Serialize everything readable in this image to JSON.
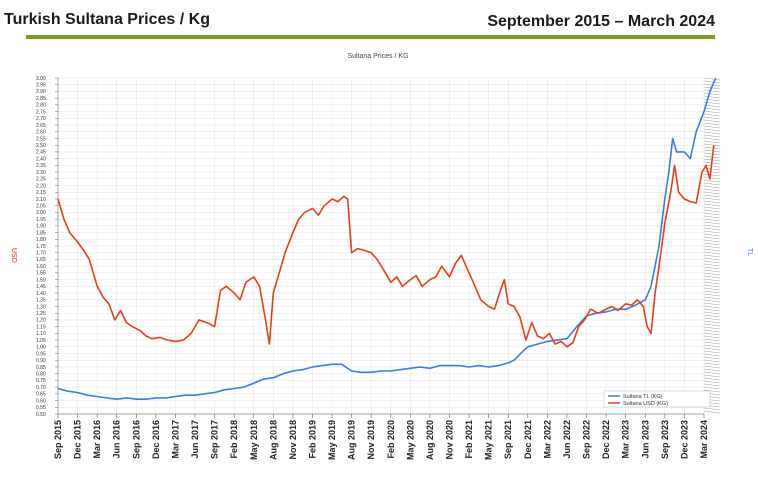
{
  "header": {
    "title": "Turkish Sultana Prices / Kg",
    "date_range": "September 2015 – March 2024"
  },
  "chart_data": {
    "type": "line",
    "title": "Sultana Prices / KG",
    "ylabel_left": "USD",
    "ylabel_right": "TL",
    "ylim": [
      0.5,
      3.0
    ],
    "yticks": [
      "3.00",
      "2.95",
      "2.90",
      "2.85",
      "2.80",
      "2.75",
      "2.70",
      "2.65",
      "2.60",
      "2.55",
      "2.50",
      "2.45",
      "2.40",
      "2.35",
      "2.30",
      "2.25",
      "2.20",
      "2.15",
      "2.10",
      "2.05",
      "2.00",
      "1.95",
      "1.90",
      "1.85",
      "1.80",
      "1.75",
      "1.70",
      "1.65",
      "1.60",
      "1.55",
      "1.50",
      "1.45",
      "1.40",
      "1.35",
      "1.30",
      "1.25",
      "1.20",
      "1.15",
      "1.10",
      "1.05",
      "1.00",
      "0.95",
      "0.90",
      "0.85",
      "0.80",
      "0.75",
      "0.70",
      "0.65",
      "0.60",
      "0.55",
      "0.50"
    ],
    "xticks": [
      "Sep 2015",
      "Dec 2015",
      "Mar 2016",
      "Jun 2016",
      "Sep 2016",
      "Dec 2016",
      "Mar 2017",
      "Jun 2017",
      "Sep 2017",
      "Feb 2018",
      "May 2018",
      "Aug 2018",
      "Nov 2018",
      "Feb 2019",
      "May 2019",
      "Aug 2019",
      "Nov 2019",
      "Feb 2020",
      "May 2020",
      "Aug 2020",
      "Nov 2020",
      "Feb 2021",
      "May 2021",
      "Sep 2021",
      "Dec 2021",
      "Mar 2022",
      "Jun 2022",
      "Sep 2022",
      "Dec 2022",
      "Mar 2023",
      "Jun 2023",
      "Sep 2023",
      "Dec 2023",
      "Mar 2024"
    ],
    "legend_position": "bottom-right",
    "series": [
      {
        "name": "Sultana TL (KG)",
        "color": "#3a7fd5",
        "points": [
          [
            0,
            0.69
          ],
          [
            0.5,
            0.67
          ],
          [
            1,
            0.66
          ],
          [
            1.5,
            0.64
          ],
          [
            2,
            0.63
          ],
          [
            2.5,
            0.62
          ],
          [
            3,
            0.61
          ],
          [
            3.5,
            0.62
          ],
          [
            4,
            0.61
          ],
          [
            4.5,
            0.61
          ],
          [
            5,
            0.62
          ],
          [
            5.5,
            0.62
          ],
          [
            6,
            0.63
          ],
          [
            6.5,
            0.64
          ],
          [
            7,
            0.64
          ],
          [
            7.5,
            0.65
          ],
          [
            8,
            0.66
          ],
          [
            8.5,
            0.68
          ],
          [
            9,
            0.69
          ],
          [
            9.5,
            0.7
          ],
          [
            10,
            0.73
          ],
          [
            10.5,
            0.76
          ],
          [
            11,
            0.77
          ],
          [
            11.5,
            0.8
          ],
          [
            12,
            0.82
          ],
          [
            12.5,
            0.83
          ],
          [
            13,
            0.85
          ],
          [
            13.5,
            0.86
          ],
          [
            14,
            0.87
          ],
          [
            14.5,
            0.87
          ],
          [
            15,
            0.82
          ],
          [
            15.5,
            0.81
          ],
          [
            16,
            0.81
          ],
          [
            16.5,
            0.82
          ],
          [
            17,
            0.82
          ],
          [
            17.5,
            0.83
          ],
          [
            18,
            0.84
          ],
          [
            18.5,
            0.85
          ],
          [
            19,
            0.84
          ],
          [
            19.5,
            0.86
          ],
          [
            20,
            0.86
          ],
          [
            20.5,
            0.86
          ],
          [
            21,
            0.85
          ],
          [
            21.5,
            0.86
          ],
          [
            22,
            0.85
          ],
          [
            22.5,
            0.86
          ],
          [
            23,
            0.88
          ],
          [
            23.3,
            0.9
          ],
          [
            23.7,
            0.96
          ],
          [
            24,
            1.0
          ],
          [
            24.5,
            1.02
          ],
          [
            25,
            1.04
          ],
          [
            25.5,
            1.05
          ],
          [
            26,
            1.06
          ],
          [
            26.5,
            1.15
          ],
          [
            27,
            1.23
          ],
          [
            27.5,
            1.25
          ],
          [
            28,
            1.26
          ],
          [
            28.5,
            1.28
          ],
          [
            29,
            1.28
          ],
          [
            29.5,
            1.31
          ],
          [
            30,
            1.35
          ],
          [
            30.3,
            1.45
          ],
          [
            30.7,
            1.75
          ],
          [
            31,
            2.1
          ],
          [
            31.2,
            2.3
          ],
          [
            31.4,
            2.55
          ],
          [
            31.6,
            2.45
          ],
          [
            32,
            2.45
          ],
          [
            32.3,
            2.4
          ],
          [
            32.6,
            2.6
          ],
          [
            33,
            2.75
          ],
          [
            33.3,
            2.9
          ],
          [
            33.6,
            3.0
          ]
        ]
      },
      {
        "name": "Sultana USD (KG)",
        "color": "#e0401a",
        "points": [
          [
            0,
            2.1
          ],
          [
            0.3,
            1.95
          ],
          [
            0.6,
            1.85
          ],
          [
            1,
            1.78
          ],
          [
            1.3,
            1.72
          ],
          [
            1.6,
            1.65
          ],
          [
            2,
            1.45
          ],
          [
            2.3,
            1.37
          ],
          [
            2.6,
            1.32
          ],
          [
            2.9,
            1.2
          ],
          [
            3.2,
            1.27
          ],
          [
            3.5,
            1.18
          ],
          [
            3.8,
            1.15
          ],
          [
            4.2,
            1.12
          ],
          [
            4.5,
            1.08
          ],
          [
            4.8,
            1.06
          ],
          [
            5.2,
            1.07
          ],
          [
            5.6,
            1.05
          ],
          [
            6,
            1.04
          ],
          [
            6.4,
            1.05
          ],
          [
            6.8,
            1.1
          ],
          [
            7.2,
            1.2
          ],
          [
            7.6,
            1.18
          ],
          [
            8,
            1.15
          ],
          [
            8.3,
            1.42
          ],
          [
            8.6,
            1.45
          ],
          [
            9,
            1.4
          ],
          [
            9.3,
            1.35
          ],
          [
            9.6,
            1.48
          ],
          [
            10,
            1.52
          ],
          [
            10.3,
            1.45
          ],
          [
            10.6,
            1.2
          ],
          [
            10.8,
            1.02
          ],
          [
            11,
            1.4
          ],
          [
            11.3,
            1.55
          ],
          [
            11.6,
            1.7
          ],
          [
            12,
            1.85
          ],
          [
            12.3,
            1.95
          ],
          [
            12.6,
            2.0
          ],
          [
            13,
            2.03
          ],
          [
            13.3,
            1.98
          ],
          [
            13.6,
            2.05
          ],
          [
            14,
            2.1
          ],
          [
            14.3,
            2.08
          ],
          [
            14.6,
            2.12
          ],
          [
            14.8,
            2.1
          ],
          [
            15,
            1.7
          ],
          [
            15.3,
            1.73
          ],
          [
            15.6,
            1.72
          ],
          [
            16,
            1.7
          ],
          [
            16.3,
            1.65
          ],
          [
            16.6,
            1.58
          ],
          [
            17,
            1.48
          ],
          [
            17.3,
            1.52
          ],
          [
            17.6,
            1.45
          ],
          [
            18,
            1.5
          ],
          [
            18.3,
            1.53
          ],
          [
            18.6,
            1.45
          ],
          [
            19,
            1.5
          ],
          [
            19.3,
            1.52
          ],
          [
            19.6,
            1.6
          ],
          [
            20,
            1.52
          ],
          [
            20.3,
            1.62
          ],
          [
            20.6,
            1.68
          ],
          [
            21,
            1.55
          ],
          [
            21.3,
            1.45
          ],
          [
            21.6,
            1.35
          ],
          [
            22,
            1.3
          ],
          [
            22.3,
            1.28
          ],
          [
            22.6,
            1.42
          ],
          [
            22.8,
            1.5
          ],
          [
            23,
            1.32
          ],
          [
            23.3,
            1.3
          ],
          [
            23.6,
            1.22
          ],
          [
            23.9,
            1.05
          ],
          [
            24.2,
            1.18
          ],
          [
            24.5,
            1.08
          ],
          [
            24.8,
            1.06
          ],
          [
            25.1,
            1.1
          ],
          [
            25.4,
            1.02
          ],
          [
            25.7,
            1.04
          ],
          [
            26,
            1.0
          ],
          [
            26.3,
            1.03
          ],
          [
            26.6,
            1.15
          ],
          [
            26.9,
            1.2
          ],
          [
            27.2,
            1.28
          ],
          [
            27.6,
            1.25
          ],
          [
            28,
            1.28
          ],
          [
            28.3,
            1.3
          ],
          [
            28.6,
            1.27
          ],
          [
            29,
            1.32
          ],
          [
            29.3,
            1.31
          ],
          [
            29.6,
            1.35
          ],
          [
            29.9,
            1.3
          ],
          [
            30.1,
            1.15
          ],
          [
            30.3,
            1.1
          ],
          [
            30.5,
            1.4
          ],
          [
            30.8,
            1.7
          ],
          [
            31,
            1.92
          ],
          [
            31.3,
            2.15
          ],
          [
            31.5,
            2.35
          ],
          [
            31.7,
            2.15
          ],
          [
            32,
            2.1
          ],
          [
            32.3,
            2.08
          ],
          [
            32.6,
            2.07
          ],
          [
            32.9,
            2.3
          ],
          [
            33.1,
            2.35
          ],
          [
            33.3,
            2.25
          ],
          [
            33.5,
            2.5
          ]
        ]
      }
    ]
  }
}
